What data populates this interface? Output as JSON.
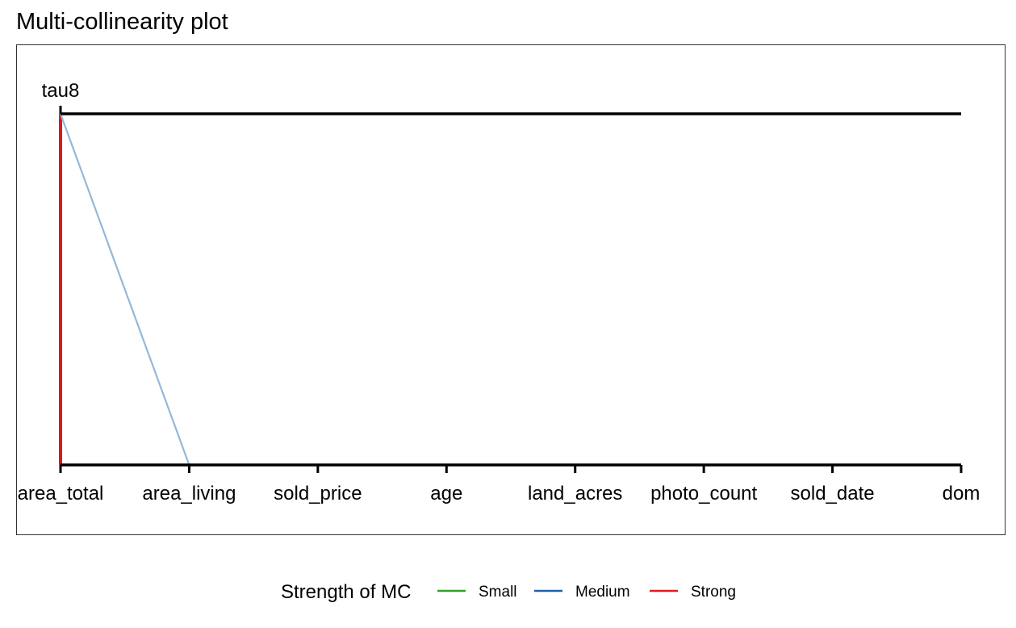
{
  "chart_data": {
    "type": "line",
    "title": "Multi-collinearity plot",
    "xlabel": "",
    "ylabel": "",
    "categories": [
      "area_total",
      "area_living",
      "sold_price",
      "age",
      "land_acres",
      "photo_count",
      "sold_date",
      "dom"
    ],
    "reference_variable": "tau8",
    "ylim": [
      0,
      1
    ],
    "grid": false,
    "connections": [
      {
        "from": "area_total",
        "to": "area_total",
        "strength": "Strong",
        "emphasis": "full"
      },
      {
        "from": "area_total",
        "to": "area_living",
        "strength": "Medium",
        "emphasis": "faded"
      }
    ],
    "legend": {
      "title": "Strength of MC",
      "placement": "bottom",
      "items": [
        {
          "label": "Small",
          "color": "#33a02c"
        },
        {
          "label": "Medium",
          "color": "#1f63a8"
        },
        {
          "label": "Strong",
          "color": "#e31a1c"
        }
      ]
    },
    "colors": {
      "axis": "#000000",
      "panel_border": "#333333",
      "medium_faded": "#96b8d6",
      "strong": "#d7191c"
    }
  }
}
